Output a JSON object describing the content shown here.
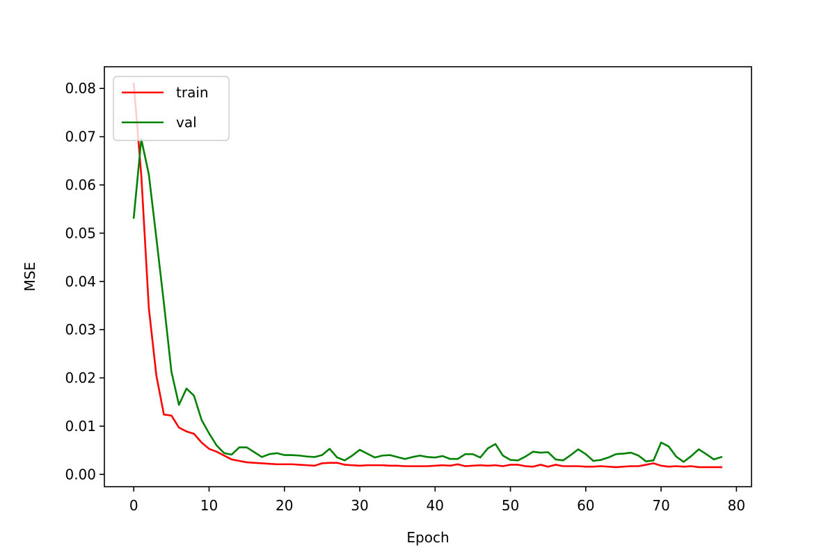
{
  "chart_data": {
    "type": "line",
    "title": "",
    "xlabel": "Epoch",
    "ylabel": "MSE",
    "xlim": [
      -3.9,
      82
    ],
    "ylim": [
      -0.00255,
      0.0845
    ],
    "xticks": [
      0,
      10,
      20,
      30,
      40,
      50,
      60,
      70,
      80
    ],
    "xtick_labels": [
      "0",
      "10",
      "20",
      "30",
      "40",
      "50",
      "60",
      "70",
      "80"
    ],
    "yticks": [
      0.0,
      0.01,
      0.02,
      0.03,
      0.04,
      0.05,
      0.06,
      0.07,
      0.08
    ],
    "ytick_labels": [
      "0.00",
      "0.01",
      "0.02",
      "0.03",
      "0.04",
      "0.05",
      "0.06",
      "0.07",
      "0.08"
    ],
    "grid": false,
    "legend_position": "upper-left",
    "series": [
      {
        "name": "train",
        "color": "#ff0000",
        "values": [
          0.081,
          0.062,
          0.0345,
          0.0205,
          0.0124,
          0.0122,
          0.0097,
          0.0089,
          0.0084,
          0.0066,
          0.0053,
          0.0047,
          0.0039,
          0.0031,
          0.0028,
          0.0025,
          0.0024,
          0.0023,
          0.0022,
          0.0021,
          0.0021,
          0.0021,
          0.002,
          0.0019,
          0.0018,
          0.0023,
          0.0024,
          0.0024,
          0.002,
          0.0019,
          0.0018,
          0.0019,
          0.0019,
          0.0019,
          0.0018,
          0.0018,
          0.0017,
          0.0017,
          0.0017,
          0.0017,
          0.0018,
          0.0019,
          0.0018,
          0.0021,
          0.0017,
          0.0018,
          0.0019,
          0.0018,
          0.0019,
          0.0017,
          0.002,
          0.002,
          0.0017,
          0.0016,
          0.002,
          0.0016,
          0.002,
          0.0017,
          0.0017,
          0.0017,
          0.0016,
          0.0016,
          0.0017,
          0.0016,
          0.0015,
          0.0016,
          0.0017,
          0.0017,
          0.002,
          0.0023,
          0.0018,
          0.0016,
          0.0017,
          0.0016,
          0.0017,
          0.0015,
          0.0015,
          0.0015,
          0.0015
        ]
      },
      {
        "name": "val",
        "color": "#008000",
        "values": [
          0.0532,
          0.0695,
          0.0622,
          0.049,
          0.0355,
          0.0213,
          0.0144,
          0.0178,
          0.0163,
          0.0113,
          0.0085,
          0.006,
          0.0044,
          0.0041,
          0.0056,
          0.0056,
          0.0046,
          0.0036,
          0.0042,
          0.0044,
          0.004,
          0.004,
          0.0039,
          0.0037,
          0.0036,
          0.004,
          0.0053,
          0.0035,
          0.0029,
          0.0039,
          0.0051,
          0.0043,
          0.0035,
          0.0039,
          0.004,
          0.0036,
          0.0032,
          0.0036,
          0.0039,
          0.0036,
          0.0035,
          0.0038,
          0.0032,
          0.0032,
          0.0042,
          0.0042,
          0.0035,
          0.0054,
          0.0063,
          0.0039,
          0.003,
          0.0029,
          0.0037,
          0.0047,
          0.0045,
          0.0046,
          0.0031,
          0.0029,
          0.004,
          0.0052,
          0.0042,
          0.0028,
          0.003,
          0.0035,
          0.0042,
          0.0043,
          0.0045,
          0.0039,
          0.0027,
          0.0029,
          0.0066,
          0.0058,
          0.0037,
          0.0026,
          0.0038,
          0.0052,
          0.0042,
          0.0031,
          0.0036
        ]
      }
    ]
  }
}
